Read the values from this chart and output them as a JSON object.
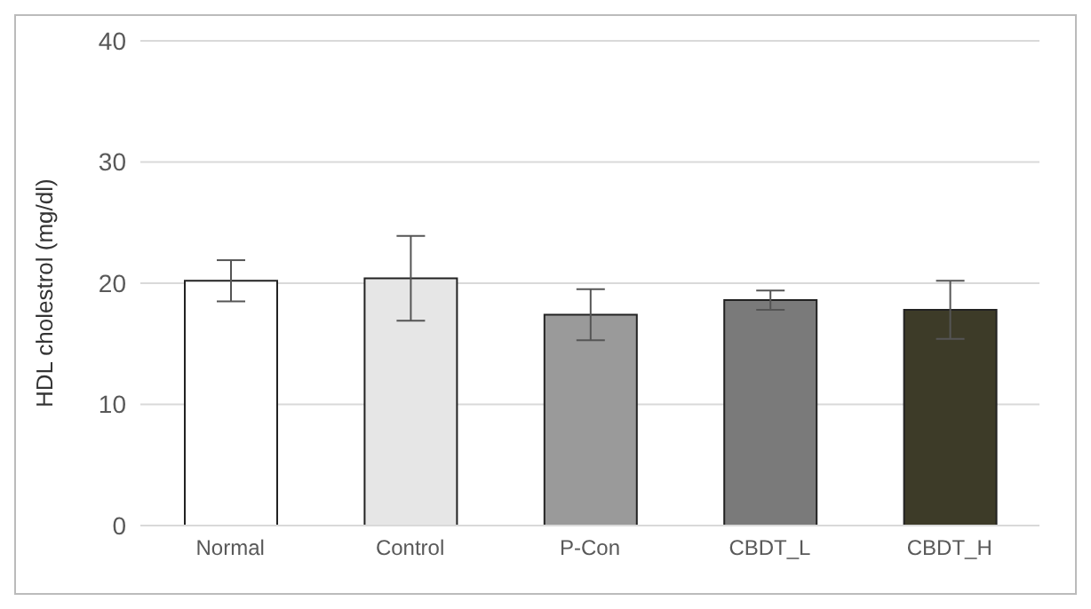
{
  "chart_data": {
    "type": "bar",
    "ylabel": "HDL cholestrol  (mg/dl)",
    "categories": [
      "Normal",
      "Control",
      "P-Con",
      "CBDT_L",
      "CBDT_H"
    ],
    "values": [
      20.2,
      20.4,
      17.4,
      18.6,
      17.8
    ],
    "errors": [
      1.7,
      3.5,
      2.1,
      0.8,
      2.4
    ],
    "colors": [
      "#ffffff",
      "#e6e6e6",
      "#9a9a9a",
      "#7a7a7a",
      "#3d3b28"
    ],
    "ylim": [
      0,
      40
    ],
    "yticks": [
      0,
      10,
      20,
      30,
      40
    ],
    "grid": "y"
  }
}
